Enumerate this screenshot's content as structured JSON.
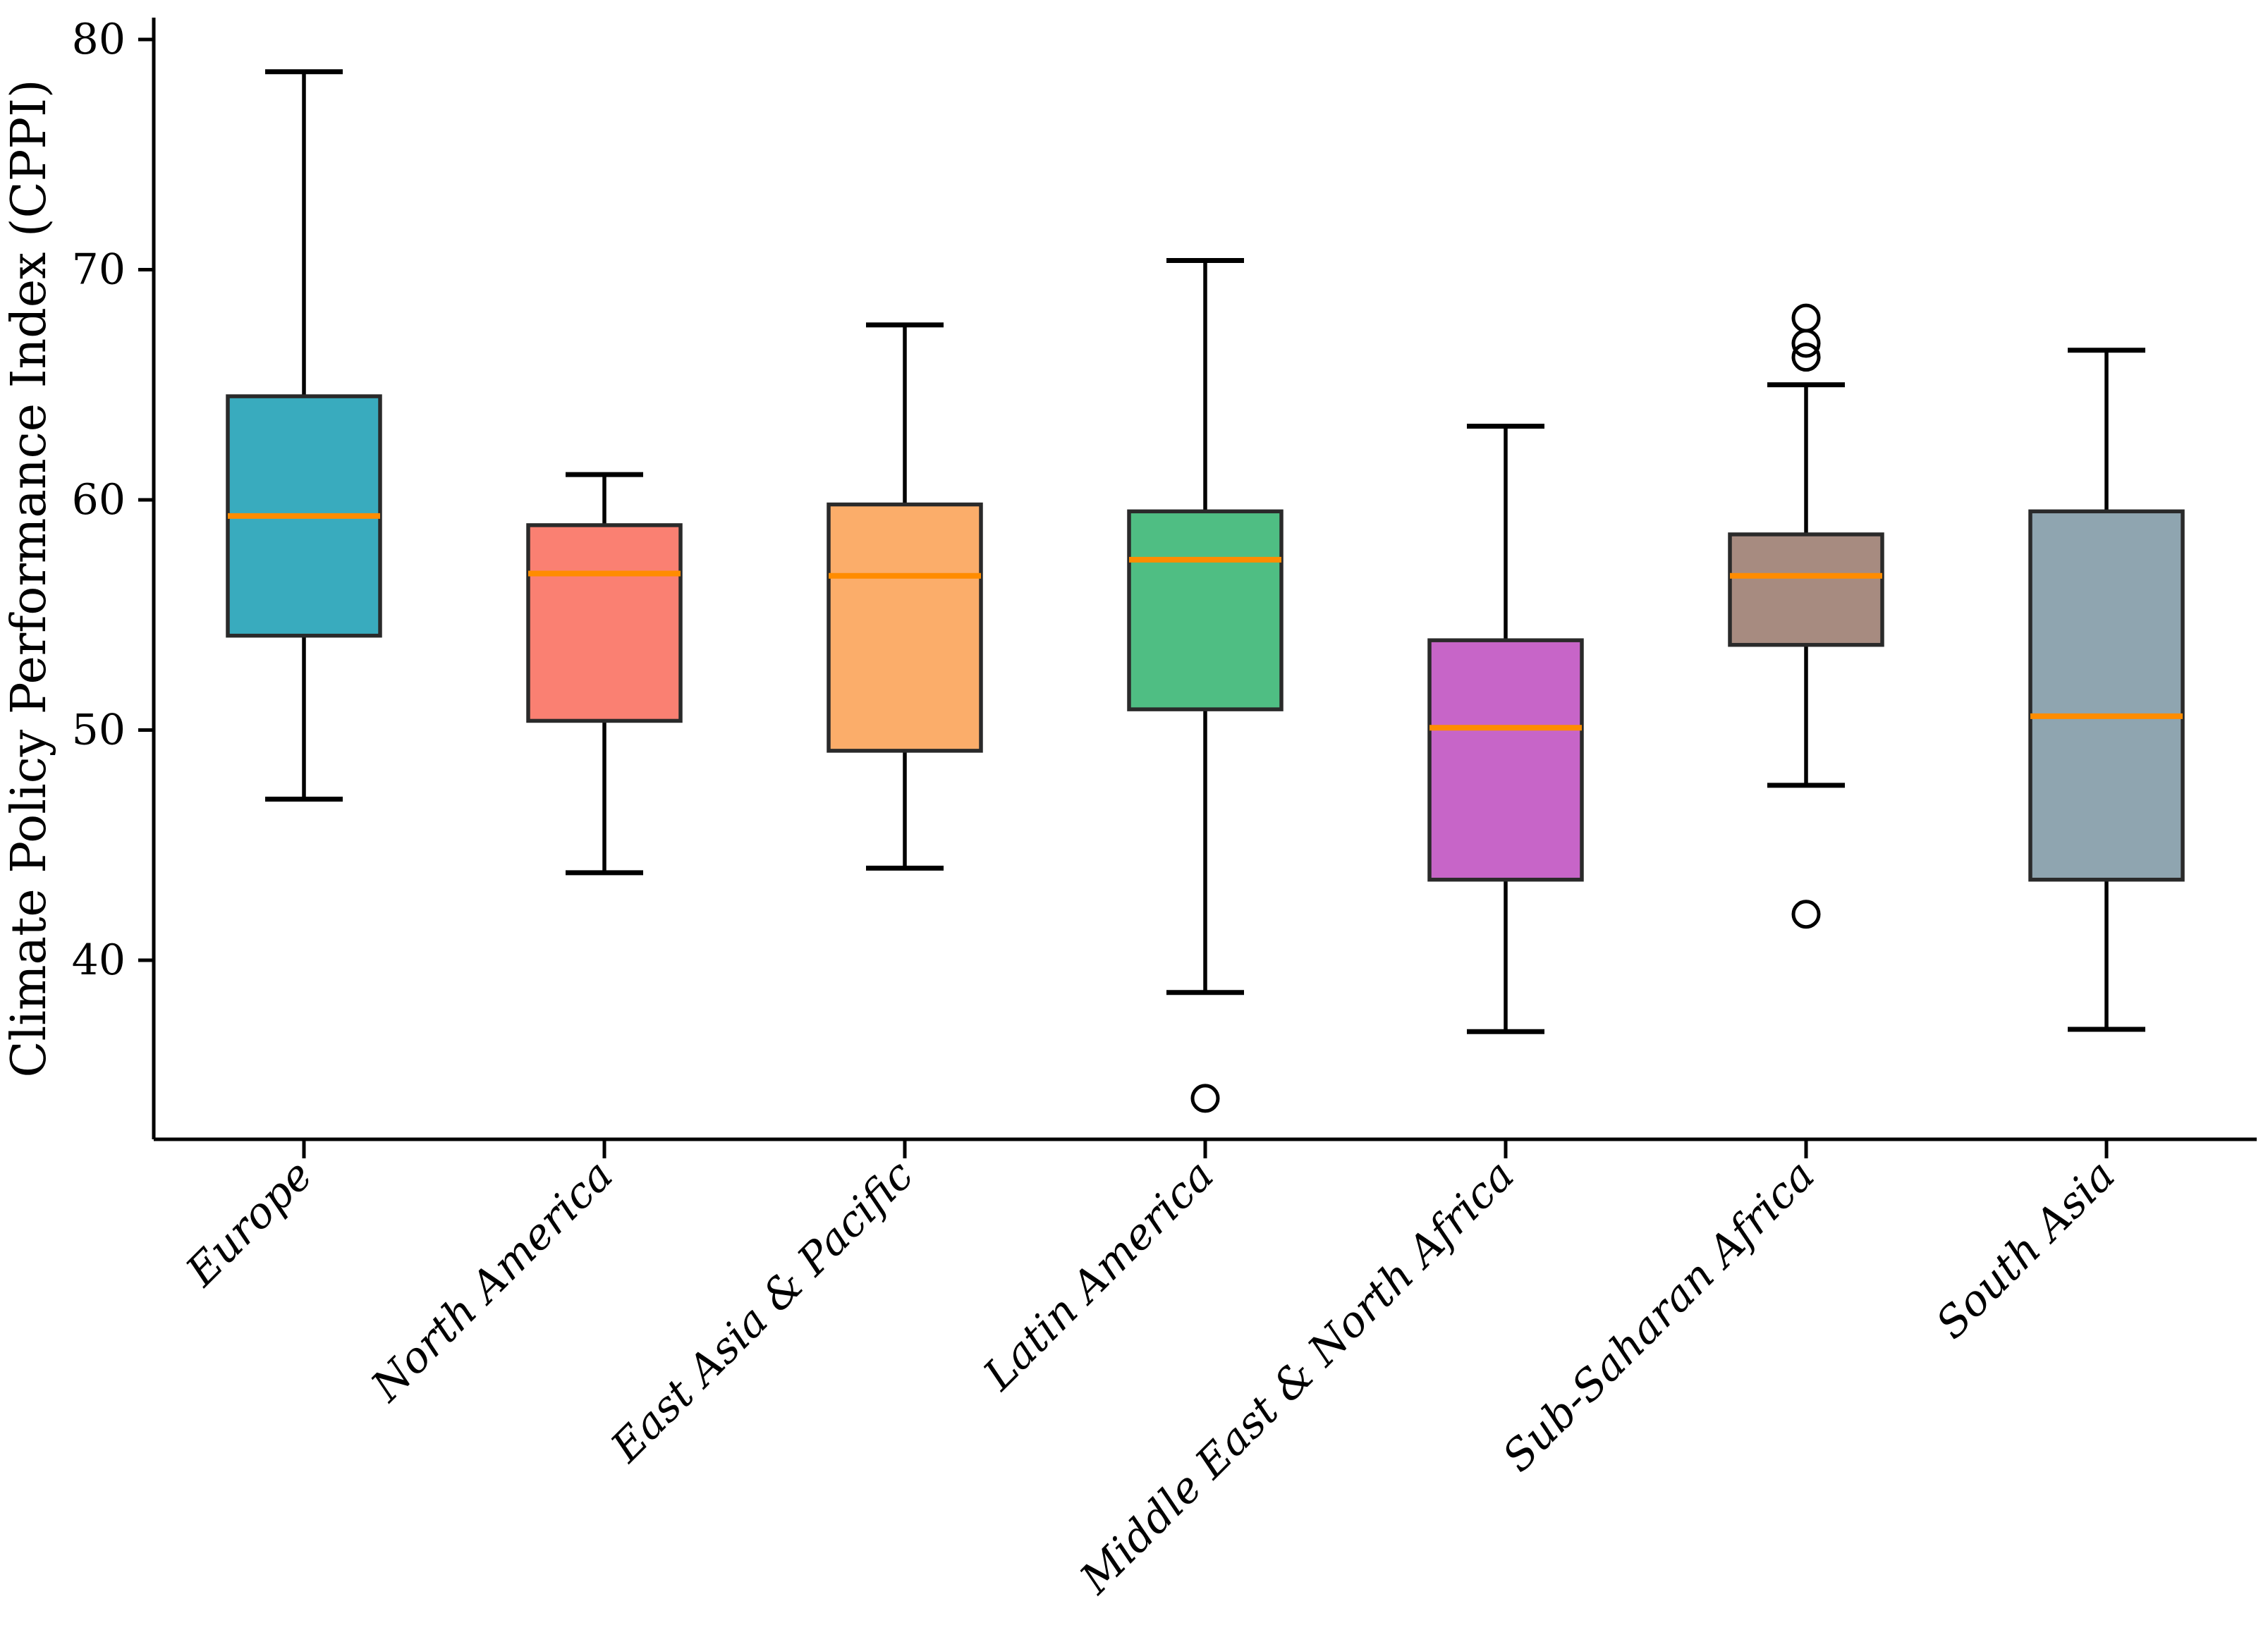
{
  "figure": {
    "background": "#ffffff",
    "title": ""
  },
  "chart_data": {
    "type": "box",
    "title": "",
    "xlabel": "",
    "ylabel": "Climate Policy Performance Index (CPPI)",
    "ylim": [
      32.2,
      81.0
    ],
    "yticks": [
      40,
      50,
      60,
      70,
      80
    ],
    "grid": false,
    "legend_position": "none",
    "spines": [
      "left",
      "bottom"
    ],
    "categories": [
      "Europe",
      "North America",
      "East Asia & Pacific",
      "Latin America",
      "Middle East & North Africa",
      "Sub-Saharan Africa",
      "South Asia"
    ],
    "series": [
      {
        "name": "Europe",
        "whisker_low": 47.0,
        "q1": 54.1,
        "median": 59.3,
        "q3": 64.5,
        "whisker_high": 78.6,
        "outliers": [],
        "fill_color": "#39ABBE"
      },
      {
        "name": "North America",
        "whisker_low": 43.8,
        "q1": 50.4,
        "median": 56.8,
        "q3": 58.9,
        "whisker_high": 61.1,
        "outliers": [],
        "fill_color": "#FA8072"
      },
      {
        "name": "East Asia & Pacific",
        "whisker_low": 44.0,
        "q1": 49.1,
        "median": 56.7,
        "q3": 59.8,
        "whisker_high": 67.6,
        "outliers": [],
        "fill_color": "#FBAD6A"
      },
      {
        "name": "Latin America",
        "whisker_low": 38.6,
        "q1": 50.9,
        "median": 57.4,
        "q3": 59.5,
        "whisker_high": 70.4,
        "outliers": [
          34.0
        ],
        "fill_color": "#4FBE83"
      },
      {
        "name": "Middle East & North Africa",
        "whisker_low": 36.9,
        "q1": 43.5,
        "median": 50.1,
        "q3": 53.9,
        "whisker_high": 63.2,
        "outliers": [],
        "fill_color": "#C765C8"
      },
      {
        "name": "Sub-Saharan Africa",
        "whisker_low": 47.6,
        "q1": 53.7,
        "median": 56.7,
        "q3": 58.5,
        "whisker_high": 65.0,
        "outliers": [
          67.9,
          66.8,
          66.2,
          42.0
        ],
        "fill_color": "#A78B80"
      },
      {
        "name": "South Asia",
        "whisker_low": 37.0,
        "q1": 43.5,
        "median": 50.6,
        "q3": 59.5,
        "whisker_high": 66.5,
        "outliers": [],
        "fill_color": "#8FA5B0"
      }
    ],
    "style": {
      "median_color": "#FF8C00",
      "box_edge_color": "#2A2A2A",
      "whisker_color": "#000000",
      "axis_color": "#000000",
      "outlier_marker": "open-circle"
    }
  }
}
